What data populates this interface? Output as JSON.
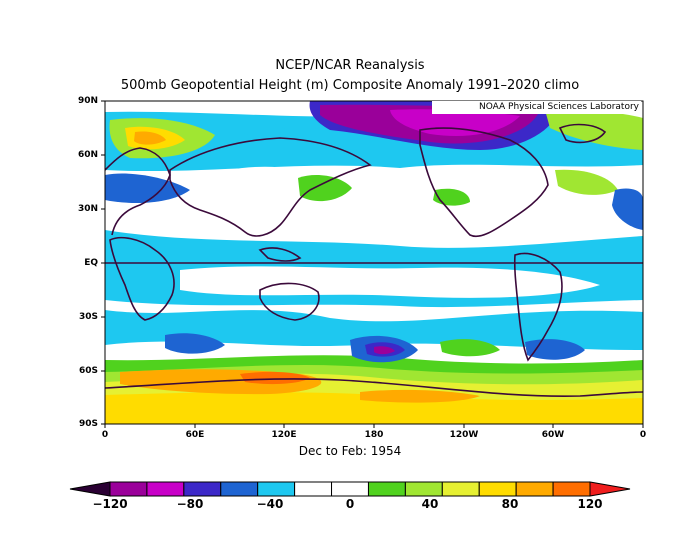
{
  "title_line1": "NCEP/NCAR Reanalysis",
  "title_line2": "500mb Geopotential Height (m) Composite Anomaly 1991–2020 climo",
  "credit": "NOAA Physical Sciences Laboratory",
  "period_label": "Dec to Feb: 1954",
  "lat_labels": [
    "90N",
    "60N",
    "30N",
    "EQ",
    "30S",
    "60S",
    "90S"
  ],
  "lon_labels": [
    "0",
    "60E",
    "120E",
    "180",
    "120W",
    "60W",
    "0"
  ],
  "colorbar": {
    "tick_labels": [
      "−120",
      "−80",
      "−40",
      "0",
      "40",
      "80",
      "120"
    ],
    "colors": [
      "#80007f",
      "#9a009a",
      "#c800c8",
      "#3c28c8",
      "#1e64d2",
      "#1ec8f0",
      "#ffffff",
      "#ffffff",
      "#50d21e",
      "#a0e632",
      "#e6f032",
      "#ffdc00",
      "#ffaa00",
      "#ff6e00",
      "#f01e1e"
    ]
  }
}
